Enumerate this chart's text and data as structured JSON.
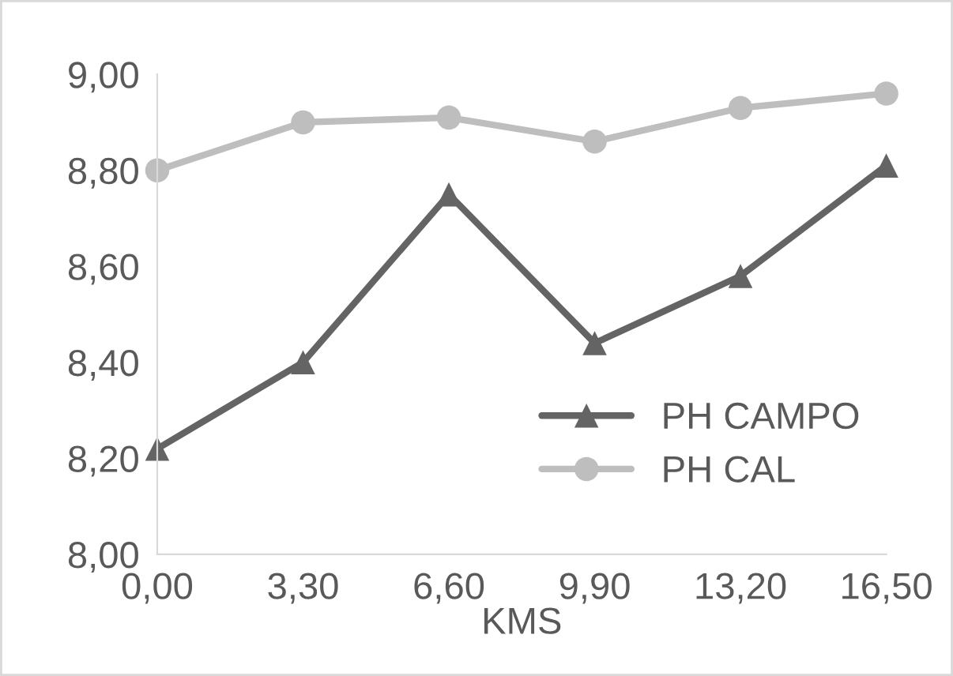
{
  "chart_data": {
    "type": "line",
    "xlabel": "KMS",
    "x": [
      0,
      3.3,
      6.6,
      9.9,
      13.2,
      16.5
    ],
    "series": [
      {
        "name": "PH CAMPO",
        "color": "#646464",
        "marker": "triangle",
        "values": [
          8.22,
          8.4,
          8.75,
          8.44,
          8.58,
          8.81
        ]
      },
      {
        "name": "PH CAL",
        "color": "#bebebe",
        "marker": "circle",
        "values": [
          8.8,
          8.9,
          8.91,
          8.86,
          8.93,
          8.96
        ]
      }
    ],
    "xlim": [
      0,
      16.5
    ],
    "xticks": [
      {
        "value": 0,
        "label": "0,00"
      },
      {
        "value": 3.3,
        "label": "3,30"
      },
      {
        "value": 6.6,
        "label": "6,60"
      },
      {
        "value": 9.9,
        "label": "9,90"
      },
      {
        "value": 13.2,
        "label": "13,20"
      },
      {
        "value": 16.5,
        "label": "16,50"
      }
    ],
    "ylim": [
      8,
      9
    ],
    "yticks": [
      {
        "value": 8,
        "label": "8,00"
      },
      {
        "value": 8.2,
        "label": "8,20"
      },
      {
        "value": 8.4,
        "label": "8,40"
      },
      {
        "value": 8.6,
        "label": "8,60"
      },
      {
        "value": 8.8,
        "label": "8,80"
      },
      {
        "value": 9,
        "label": "9,00"
      }
    ],
    "grid": false,
    "legend": "lower right",
    "line_style": "solid"
  }
}
